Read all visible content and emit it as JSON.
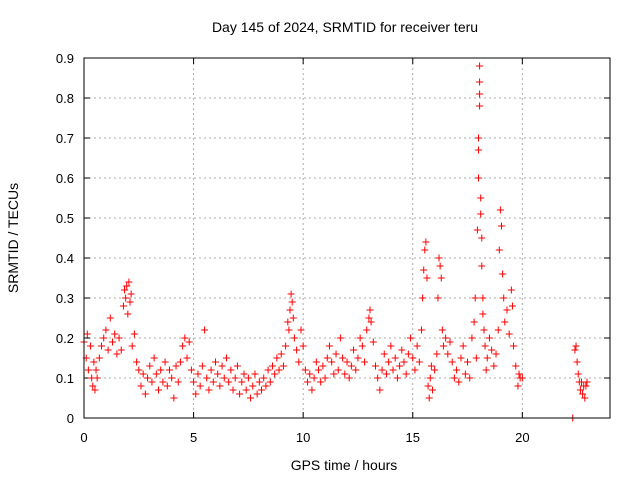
{
  "chart_data": {
    "type": "scatter",
    "title": "Day 145 of 2024, SRMTID for receiver teru",
    "xlabel": "GPS time / hours",
    "ylabel": "SRMTID / TECUs",
    "xlim": [
      0,
      24
    ],
    "ylim": [
      0,
      0.9
    ],
    "xticks": [
      0,
      5,
      10,
      15,
      20
    ],
    "yticks": [
      0,
      0.1,
      0.2,
      0.3,
      0.4,
      0.5,
      0.6,
      0.7,
      0.8,
      0.9
    ],
    "xtick_labels": [
      "0",
      "5",
      "10",
      "15",
      "20"
    ],
    "ytick_labels": [
      "0",
      "0.1",
      "0.2",
      "0.3",
      "0.4",
      "0.5",
      "0.6",
      "0.7",
      "0.8",
      "0.9"
    ],
    "grid": true,
    "marker": "+",
    "color": "#ff0000",
    "series": [
      {
        "name": "SRMTID",
        "points": [
          [
            0.0,
            0.19
          ],
          [
            0.1,
            0.15
          ],
          [
            0.15,
            0.21
          ],
          [
            0.2,
            0.12
          ],
          [
            0.3,
            0.18
          ],
          [
            0.35,
            0.1
          ],
          [
            0.4,
            0.08
          ],
          [
            0.45,
            0.14
          ],
          [
            0.5,
            0.07
          ],
          [
            0.55,
            0.12
          ],
          [
            0.6,
            0.1
          ],
          [
            0.7,
            0.15
          ],
          [
            0.8,
            0.18
          ],
          [
            0.9,
            0.2
          ],
          [
            1.0,
            0.22
          ],
          [
            1.1,
            0.17
          ],
          [
            1.2,
            0.25
          ],
          [
            1.3,
            0.19
          ],
          [
            1.4,
            0.21
          ],
          [
            1.5,
            0.16
          ],
          [
            1.6,
            0.2
          ],
          [
            1.7,
            0.17
          ],
          [
            1.8,
            0.28
          ],
          [
            1.85,
            0.32
          ],
          [
            1.9,
            0.3
          ],
          [
            1.95,
            0.33
          ],
          [
            2.0,
            0.26
          ],
          [
            2.05,
            0.34
          ],
          [
            2.1,
            0.29
          ],
          [
            2.15,
            0.31
          ],
          [
            2.2,
            0.18
          ],
          [
            2.3,
            0.21
          ],
          [
            2.4,
            0.14
          ],
          [
            2.5,
            0.12
          ],
          [
            2.6,
            0.08
          ],
          [
            2.7,
            0.11
          ],
          [
            2.8,
            0.06
          ],
          [
            2.9,
            0.1
          ],
          [
            3.0,
            0.13
          ],
          [
            3.1,
            0.09
          ],
          [
            3.2,
            0.15
          ],
          [
            3.3,
            0.11
          ],
          [
            3.4,
            0.07
          ],
          [
            3.5,
            0.12
          ],
          [
            3.6,
            0.09
          ],
          [
            3.7,
            0.14
          ],
          [
            3.8,
            0.08
          ],
          [
            3.9,
            0.12
          ],
          [
            4.0,
            0.1
          ],
          [
            4.1,
            0.05
          ],
          [
            4.2,
            0.13
          ],
          [
            4.3,
            0.09
          ],
          [
            4.4,
            0.14
          ],
          [
            4.5,
            0.18
          ],
          [
            4.6,
            0.2
          ],
          [
            4.7,
            0.15
          ],
          [
            4.8,
            0.19
          ],
          [
            4.9,
            0.12
          ],
          [
            5.0,
            0.09
          ],
          [
            5.1,
            0.06
          ],
          [
            5.2,
            0.11
          ],
          [
            5.3,
            0.08
          ],
          [
            5.4,
            0.13
          ],
          [
            5.5,
            0.22
          ],
          [
            5.6,
            0.1
          ],
          [
            5.7,
            0.07
          ],
          [
            5.8,
            0.12
          ],
          [
            5.9,
            0.09
          ],
          [
            6.0,
            0.14
          ],
          [
            6.1,
            0.11
          ],
          [
            6.2,
            0.08
          ],
          [
            6.3,
            0.13
          ],
          [
            6.4,
            0.1
          ],
          [
            6.5,
            0.15
          ],
          [
            6.6,
            0.09
          ],
          [
            6.7,
            0.12
          ],
          [
            6.8,
            0.07
          ],
          [
            6.9,
            0.1
          ],
          [
            7.0,
            0.13
          ],
          [
            7.1,
            0.06
          ],
          [
            7.2,
            0.09
          ],
          [
            7.3,
            0.11
          ],
          [
            7.4,
            0.07
          ],
          [
            7.5,
            0.1
          ],
          [
            7.6,
            0.05
          ],
          [
            7.7,
            0.08
          ],
          [
            7.8,
            0.11
          ],
          [
            7.9,
            0.06
          ],
          [
            8.0,
            0.09
          ],
          [
            8.1,
            0.07
          ],
          [
            8.2,
            0.1
          ],
          [
            8.3,
            0.08
          ],
          [
            8.4,
            0.12
          ],
          [
            8.5,
            0.09
          ],
          [
            8.6,
            0.13
          ],
          [
            8.7,
            0.11
          ],
          [
            8.8,
            0.15
          ],
          [
            8.9,
            0.12
          ],
          [
            9.0,
            0.16
          ],
          [
            9.1,
            0.13
          ],
          [
            9.2,
            0.18
          ],
          [
            9.3,
            0.24
          ],
          [
            9.35,
            0.22
          ],
          [
            9.4,
            0.27
          ],
          [
            9.45,
            0.31
          ],
          [
            9.5,
            0.29
          ],
          [
            9.55,
            0.25
          ],
          [
            9.6,
            0.2
          ],
          [
            9.7,
            0.17
          ],
          [
            9.8,
            0.14
          ],
          [
            9.9,
            0.22
          ],
          [
            10.0,
            0.18
          ],
          [
            10.1,
            0.12
          ],
          [
            10.2,
            0.09
          ],
          [
            10.3,
            0.11
          ],
          [
            10.4,
            0.07
          ],
          [
            10.5,
            0.1
          ],
          [
            10.6,
            0.14
          ],
          [
            10.7,
            0.12
          ],
          [
            10.8,
            0.09
          ],
          [
            10.9,
            0.13
          ],
          [
            11.0,
            0.1
          ],
          [
            11.1,
            0.15
          ],
          [
            11.2,
            0.18
          ],
          [
            11.3,
            0.14
          ],
          [
            11.4,
            0.11
          ],
          [
            11.5,
            0.16
          ],
          [
            11.6,
            0.12
          ],
          [
            11.7,
            0.2
          ],
          [
            11.8,
            0.15
          ],
          [
            11.9,
            0.11
          ],
          [
            12.0,
            0.14
          ],
          [
            12.1,
            0.1
          ],
          [
            12.2,
            0.13
          ],
          [
            12.3,
            0.17
          ],
          [
            12.4,
            0.12
          ],
          [
            12.5,
            0.15
          ],
          [
            12.6,
            0.2
          ],
          [
            12.7,
            0.18
          ],
          [
            12.8,
            0.14
          ],
          [
            12.9,
            0.22
          ],
          [
            13.0,
            0.25
          ],
          [
            13.05,
            0.27
          ],
          [
            13.1,
            0.24
          ],
          [
            13.2,
            0.19
          ],
          [
            13.3,
            0.13
          ],
          [
            13.4,
            0.1
          ],
          [
            13.5,
            0.07
          ],
          [
            13.6,
            0.12
          ],
          [
            13.7,
            0.16
          ],
          [
            13.8,
            0.11
          ],
          [
            13.9,
            0.14
          ],
          [
            14.0,
            0.18
          ],
          [
            14.1,
            0.12
          ],
          [
            14.2,
            0.15
          ],
          [
            14.3,
            0.1
          ],
          [
            14.4,
            0.13
          ],
          [
            14.5,
            0.17
          ],
          [
            14.6,
            0.14
          ],
          [
            14.7,
            0.11
          ],
          [
            14.8,
            0.16
          ],
          [
            14.9,
            0.2
          ],
          [
            15.0,
            0.15
          ],
          [
            15.1,
            0.12
          ],
          [
            15.2,
            0.18
          ],
          [
            15.3,
            0.14
          ],
          [
            15.4,
            0.22
          ],
          [
            15.45,
            0.3
          ],
          [
            15.5,
            0.37
          ],
          [
            15.55,
            0.42
          ],
          [
            15.6,
            0.44
          ],
          [
            15.65,
            0.35
          ],
          [
            15.7,
            0.08
          ],
          [
            15.75,
            0.05
          ],
          [
            15.8,
            0.1
          ],
          [
            15.85,
            0.13
          ],
          [
            15.9,
            0.07
          ],
          [
            16.0,
            0.12
          ],
          [
            16.1,
            0.16
          ],
          [
            16.15,
            0.3
          ],
          [
            16.2,
            0.4
          ],
          [
            16.25,
            0.38
          ],
          [
            16.3,
            0.35
          ],
          [
            16.35,
            0.22
          ],
          [
            16.4,
            0.18
          ],
          [
            16.5,
            0.2
          ],
          [
            16.6,
            0.16
          ],
          [
            16.7,
            0.19
          ],
          [
            16.8,
            0.14
          ],
          [
            16.9,
            0.1
          ],
          [
            17.0,
            0.12
          ],
          [
            17.1,
            0.09
          ],
          [
            17.2,
            0.15
          ],
          [
            17.3,
            0.18
          ],
          [
            17.4,
            0.11
          ],
          [
            17.5,
            0.14
          ],
          [
            17.6,
            0.1
          ],
          [
            17.7,
            0.2
          ],
          [
            17.8,
            0.24
          ],
          [
            17.85,
            0.3
          ],
          [
            17.9,
            0.15
          ],
          [
            17.95,
            0.47
          ],
          [
            18.0,
            0.6
          ],
          [
            18.0,
            0.67
          ],
          [
            18.0,
            0.7
          ],
          [
            18.05,
            0.78
          ],
          [
            18.05,
            0.81
          ],
          [
            18.05,
            0.84
          ],
          [
            18.05,
            0.88
          ],
          [
            18.1,
            0.55
          ],
          [
            18.1,
            0.51
          ],
          [
            18.15,
            0.45
          ],
          [
            18.15,
            0.38
          ],
          [
            18.2,
            0.3
          ],
          [
            18.2,
            0.26
          ],
          [
            18.25,
            0.22
          ],
          [
            18.3,
            0.18
          ],
          [
            18.35,
            0.12
          ],
          [
            18.4,
            0.15
          ],
          [
            18.5,
            0.2
          ],
          [
            18.6,
            0.17
          ],
          [
            18.7,
            0.13
          ],
          [
            18.8,
            0.16
          ],
          [
            18.9,
            0.22
          ],
          [
            18.95,
            0.42
          ],
          [
            19.0,
            0.52
          ],
          [
            19.05,
            0.48
          ],
          [
            19.1,
            0.36
          ],
          [
            19.15,
            0.3
          ],
          [
            19.2,
            0.24
          ],
          [
            19.3,
            0.27
          ],
          [
            19.4,
            0.21
          ],
          [
            19.5,
            0.32
          ],
          [
            19.55,
            0.28
          ],
          [
            19.6,
            0.18
          ],
          [
            19.7,
            0.13
          ],
          [
            19.8,
            0.08
          ],
          [
            19.85,
            0.11
          ],
          [
            19.9,
            0.1
          ],
          [
            20.0,
            0.1
          ],
          [
            22.3,
            0.0
          ],
          [
            22.4,
            0.17
          ],
          [
            22.45,
            0.18
          ],
          [
            22.5,
            0.14
          ],
          [
            22.55,
            0.11
          ],
          [
            22.6,
            0.09
          ],
          [
            22.65,
            0.07
          ],
          [
            22.7,
            0.09
          ],
          [
            22.75,
            0.06
          ],
          [
            22.8,
            0.08
          ],
          [
            22.85,
            0.05
          ],
          [
            22.9,
            0.08
          ],
          [
            22.95,
            0.09
          ]
        ]
      }
    ]
  }
}
